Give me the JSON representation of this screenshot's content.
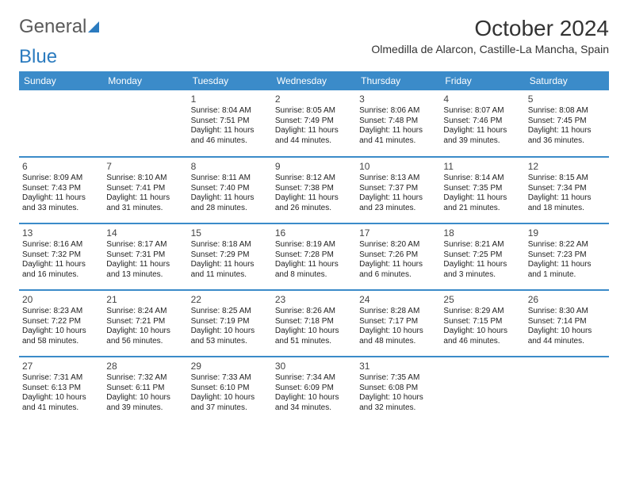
{
  "logo": {
    "part1": "General",
    "part2": "Blue"
  },
  "title": "October 2024",
  "subtitle": "Olmedilla de Alarcon, Castille-La Mancha, Spain",
  "colors": {
    "header_bg": "#3b8bc9",
    "header_text": "#ffffff",
    "row_divider": "#3b8bc9",
    "text": "#222222",
    "logo_gray": "#5a5a5a",
    "logo_blue": "#2b7bbf"
  },
  "dayHeaders": [
    "Sunday",
    "Monday",
    "Tuesday",
    "Wednesday",
    "Thursday",
    "Friday",
    "Saturday"
  ],
  "weeks": [
    [
      null,
      null,
      {
        "n": "1",
        "sr": "8:04 AM",
        "ss": "7:51 PM",
        "dl": "11 hours and 46 minutes."
      },
      {
        "n": "2",
        "sr": "8:05 AM",
        "ss": "7:49 PM",
        "dl": "11 hours and 44 minutes."
      },
      {
        "n": "3",
        "sr": "8:06 AM",
        "ss": "7:48 PM",
        "dl": "11 hours and 41 minutes."
      },
      {
        "n": "4",
        "sr": "8:07 AM",
        "ss": "7:46 PM",
        "dl": "11 hours and 39 minutes."
      },
      {
        "n": "5",
        "sr": "8:08 AM",
        "ss": "7:45 PM",
        "dl": "11 hours and 36 minutes."
      }
    ],
    [
      {
        "n": "6",
        "sr": "8:09 AM",
        "ss": "7:43 PM",
        "dl": "11 hours and 33 minutes."
      },
      {
        "n": "7",
        "sr": "8:10 AM",
        "ss": "7:41 PM",
        "dl": "11 hours and 31 minutes."
      },
      {
        "n": "8",
        "sr": "8:11 AM",
        "ss": "7:40 PM",
        "dl": "11 hours and 28 minutes."
      },
      {
        "n": "9",
        "sr": "8:12 AM",
        "ss": "7:38 PM",
        "dl": "11 hours and 26 minutes."
      },
      {
        "n": "10",
        "sr": "8:13 AM",
        "ss": "7:37 PM",
        "dl": "11 hours and 23 minutes."
      },
      {
        "n": "11",
        "sr": "8:14 AM",
        "ss": "7:35 PM",
        "dl": "11 hours and 21 minutes."
      },
      {
        "n": "12",
        "sr": "8:15 AM",
        "ss": "7:34 PM",
        "dl": "11 hours and 18 minutes."
      }
    ],
    [
      {
        "n": "13",
        "sr": "8:16 AM",
        "ss": "7:32 PM",
        "dl": "11 hours and 16 minutes."
      },
      {
        "n": "14",
        "sr": "8:17 AM",
        "ss": "7:31 PM",
        "dl": "11 hours and 13 minutes."
      },
      {
        "n": "15",
        "sr": "8:18 AM",
        "ss": "7:29 PM",
        "dl": "11 hours and 11 minutes."
      },
      {
        "n": "16",
        "sr": "8:19 AM",
        "ss": "7:28 PM",
        "dl": "11 hours and 8 minutes."
      },
      {
        "n": "17",
        "sr": "8:20 AM",
        "ss": "7:26 PM",
        "dl": "11 hours and 6 minutes."
      },
      {
        "n": "18",
        "sr": "8:21 AM",
        "ss": "7:25 PM",
        "dl": "11 hours and 3 minutes."
      },
      {
        "n": "19",
        "sr": "8:22 AM",
        "ss": "7:23 PM",
        "dl": "11 hours and 1 minute."
      }
    ],
    [
      {
        "n": "20",
        "sr": "8:23 AM",
        "ss": "7:22 PM",
        "dl": "10 hours and 58 minutes."
      },
      {
        "n": "21",
        "sr": "8:24 AM",
        "ss": "7:21 PM",
        "dl": "10 hours and 56 minutes."
      },
      {
        "n": "22",
        "sr": "8:25 AM",
        "ss": "7:19 PM",
        "dl": "10 hours and 53 minutes."
      },
      {
        "n": "23",
        "sr": "8:26 AM",
        "ss": "7:18 PM",
        "dl": "10 hours and 51 minutes."
      },
      {
        "n": "24",
        "sr": "8:28 AM",
        "ss": "7:17 PM",
        "dl": "10 hours and 48 minutes."
      },
      {
        "n": "25",
        "sr": "8:29 AM",
        "ss": "7:15 PM",
        "dl": "10 hours and 46 minutes."
      },
      {
        "n": "26",
        "sr": "8:30 AM",
        "ss": "7:14 PM",
        "dl": "10 hours and 44 minutes."
      }
    ],
    [
      {
        "n": "27",
        "sr": "7:31 AM",
        "ss": "6:13 PM",
        "dl": "10 hours and 41 minutes."
      },
      {
        "n": "28",
        "sr": "7:32 AM",
        "ss": "6:11 PM",
        "dl": "10 hours and 39 minutes."
      },
      {
        "n": "29",
        "sr": "7:33 AM",
        "ss": "6:10 PM",
        "dl": "10 hours and 37 minutes."
      },
      {
        "n": "30",
        "sr": "7:34 AM",
        "ss": "6:09 PM",
        "dl": "10 hours and 34 minutes."
      },
      {
        "n": "31",
        "sr": "7:35 AM",
        "ss": "6:08 PM",
        "dl": "10 hours and 32 minutes."
      },
      null,
      null
    ]
  ],
  "labels": {
    "sunrise": "Sunrise: ",
    "sunset": "Sunset: ",
    "daylight": "Daylight: "
  }
}
